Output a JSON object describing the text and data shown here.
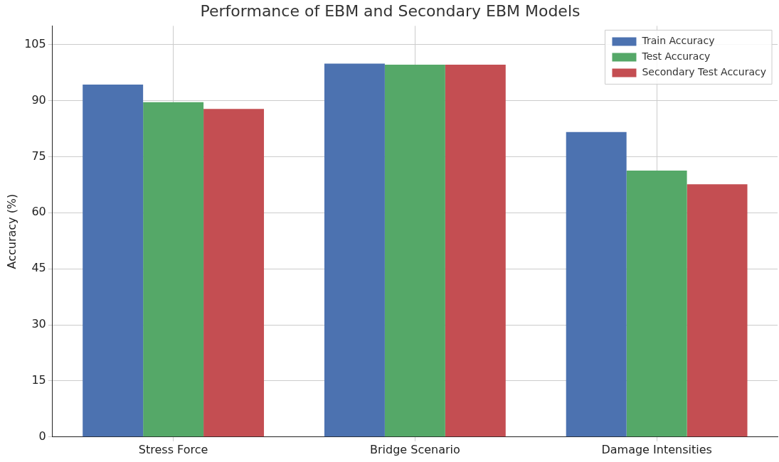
{
  "chart_data": {
    "type": "bar",
    "title": "Performance of EBM and Secondary EBM Models",
    "ylabel": "Accuracy (%)",
    "categories": [
      "Stress Force",
      "Bridge Scenario",
      "Damage Intensities"
    ],
    "series": [
      {
        "name": "Train Accuracy",
        "color": "#4c72b0",
        "values": [
          94.3,
          99.9,
          81.6
        ]
      },
      {
        "name": "Test Accuracy",
        "color": "#55a868",
        "values": [
          89.6,
          99.6,
          71.3
        ]
      },
      {
        "name": "Secondary Test Accuracy",
        "color": "#c44e52",
        "values": [
          87.8,
          99.6,
          67.6
        ]
      }
    ],
    "ylim": [
      0,
      110
    ],
    "yticks": [
      0,
      15,
      30,
      45,
      60,
      75,
      90,
      105
    ],
    "grid": true,
    "legend": "top right"
  }
}
